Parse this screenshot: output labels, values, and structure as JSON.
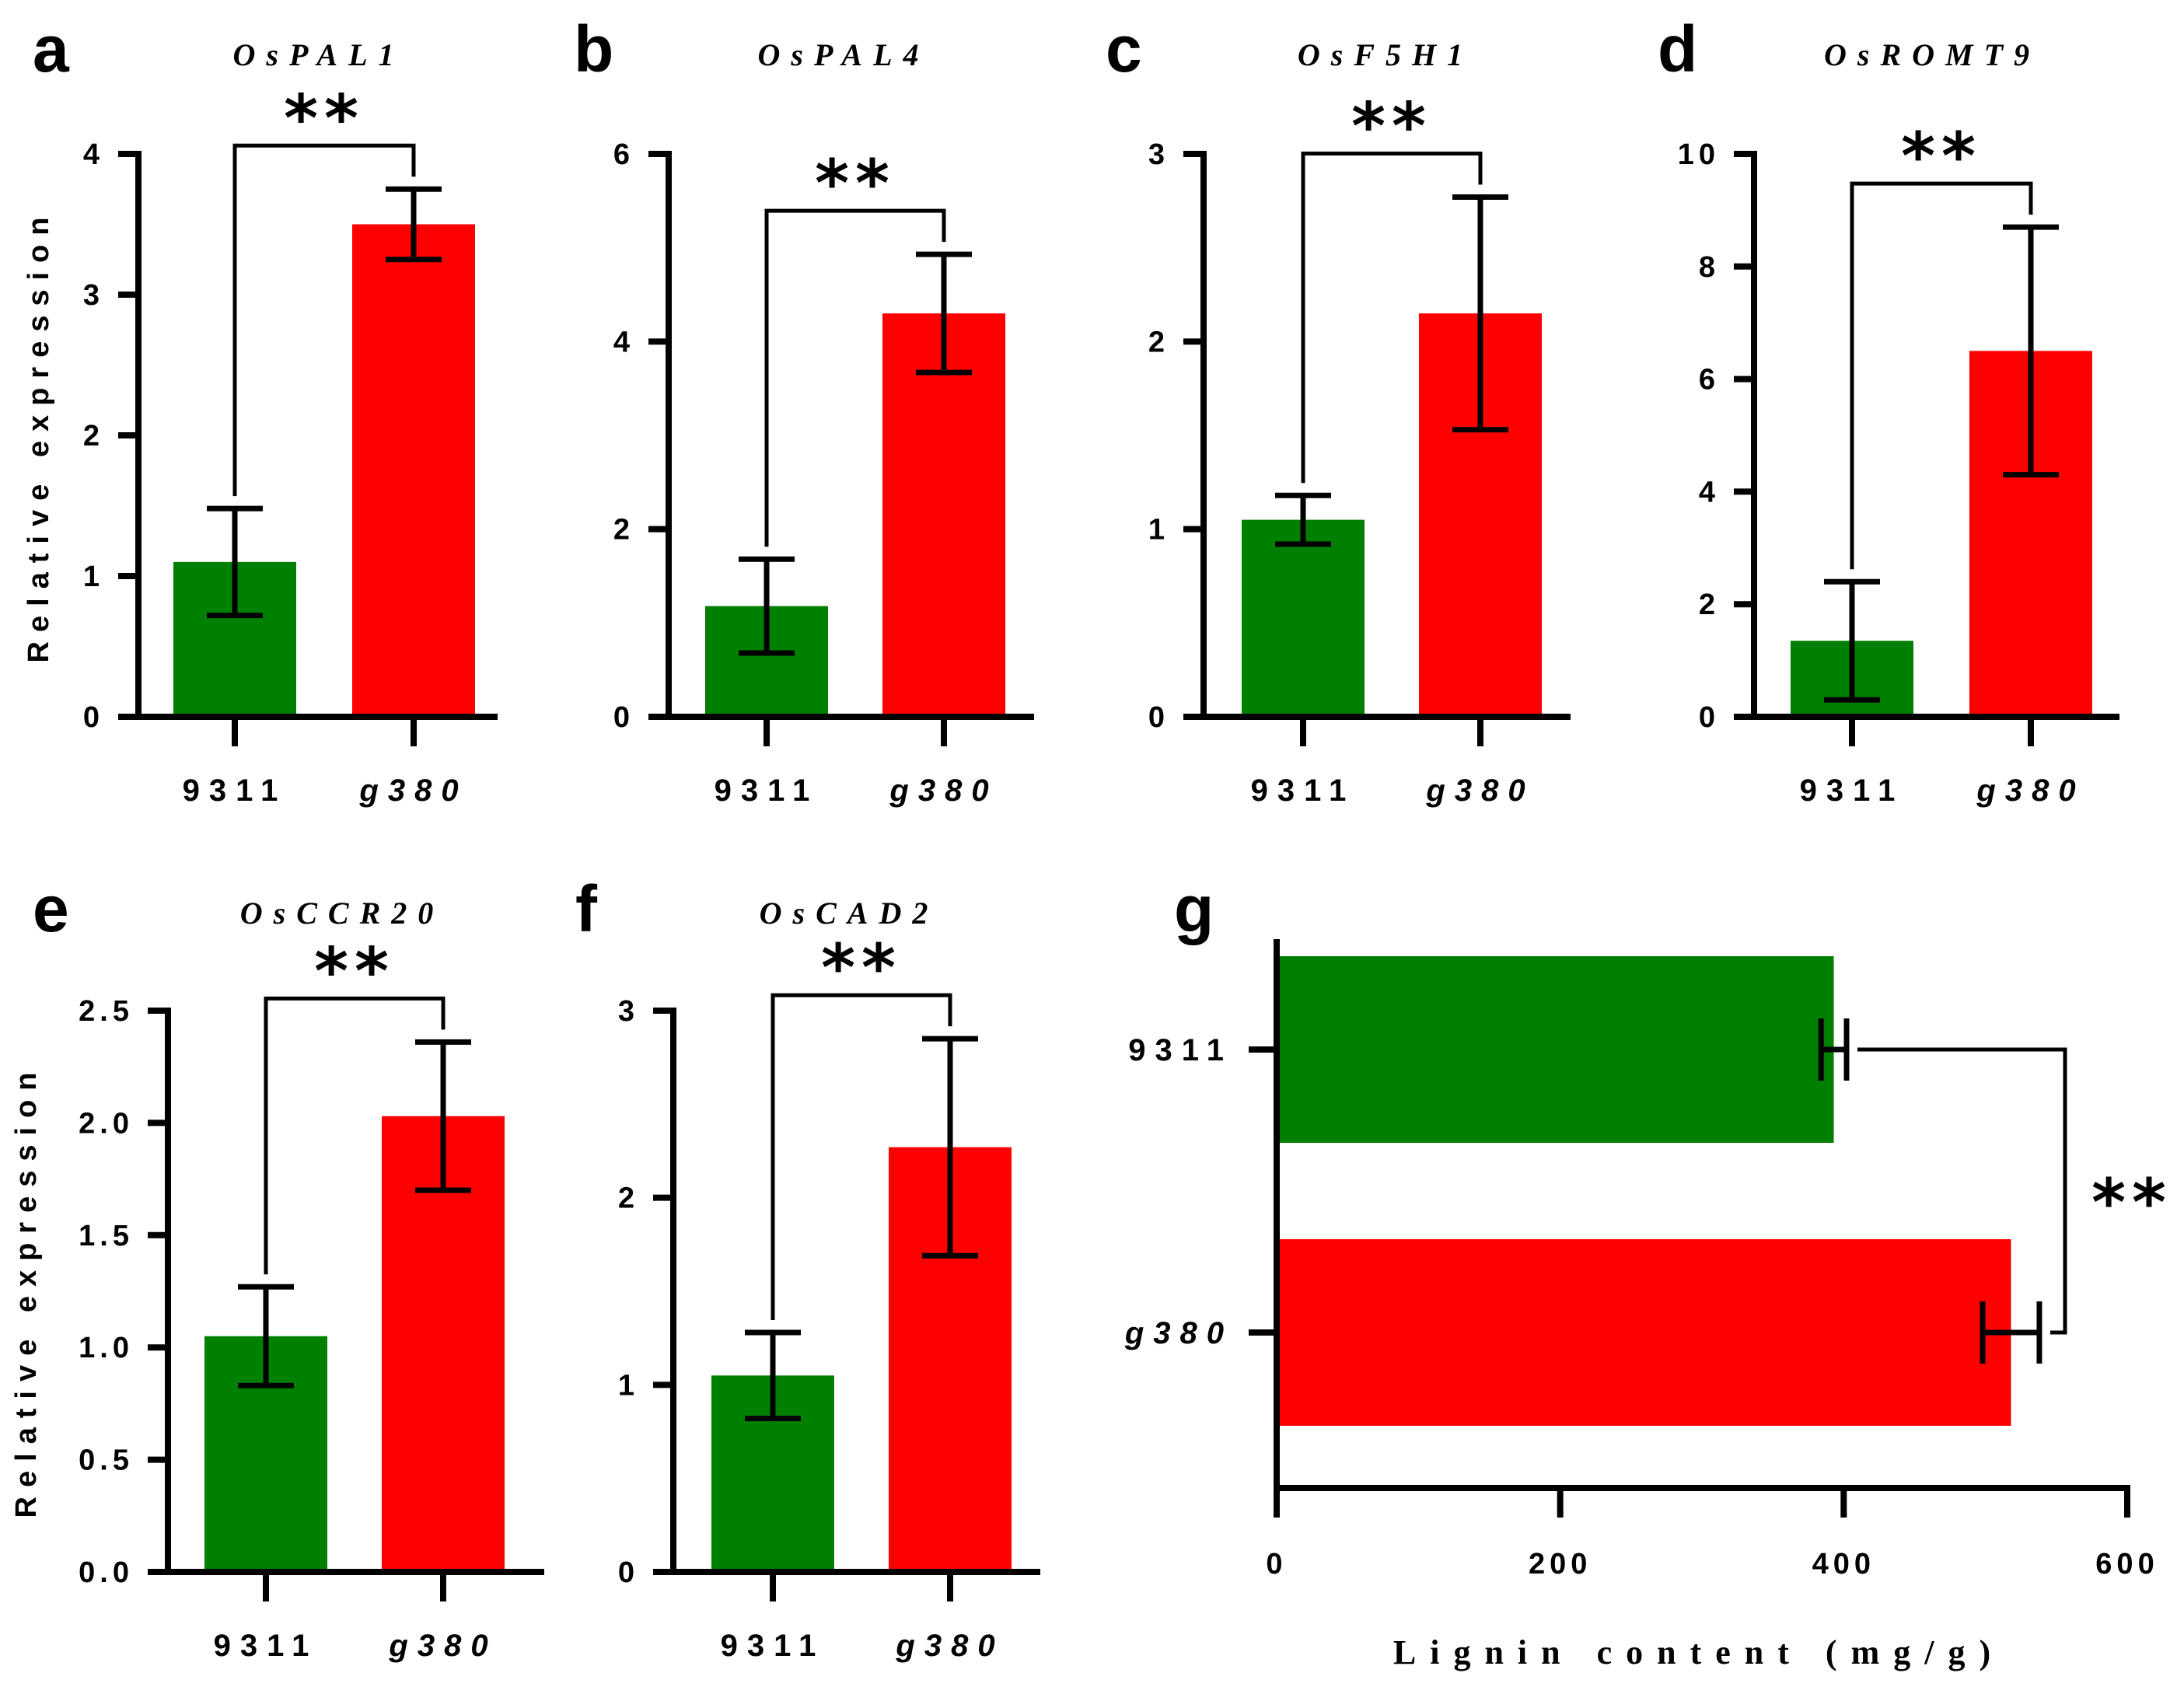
{
  "figure": {
    "colors": {
      "green": "#008000",
      "red": "#ff0000",
      "ink": "#000000"
    }
  },
  "chart_data": [
    {
      "panel": "a",
      "type": "bar",
      "orientation": "vertical",
      "title": "OsPAL1",
      "ylabel": "Relative expression",
      "xlabel": "",
      "categories": [
        "9311",
        "g380"
      ],
      "categories_italic": [
        false,
        true
      ],
      "values": [
        1.1,
        3.5
      ],
      "errors": [
        0.38,
        0.25
      ],
      "ylim": [
        0,
        4
      ],
      "yticks": [
        0,
        1,
        2,
        3,
        4
      ],
      "ytick_labels": [
        "0",
        "1",
        "2",
        "3",
        "4"
      ],
      "significance": "**"
    },
    {
      "panel": "b",
      "type": "bar",
      "orientation": "vertical",
      "title": "OsPAL4",
      "ylabel": "",
      "xlabel": "",
      "categories": [
        "9311",
        "g380"
      ],
      "categories_italic": [
        false,
        true
      ],
      "values": [
        1.18,
        4.3
      ],
      "errors": [
        0.5,
        0.63
      ],
      "ylim": [
        0,
        6
      ],
      "yticks": [
        0,
        2,
        4,
        6
      ],
      "ytick_labels": [
        "0",
        "2",
        "4",
        "6"
      ],
      "significance": "**"
    },
    {
      "panel": "c",
      "type": "bar",
      "orientation": "vertical",
      "title": "OsF5H1",
      "ylabel": "",
      "xlabel": "",
      "categories": [
        "9311",
        "g380"
      ],
      "categories_italic": [
        false,
        true
      ],
      "values": [
        1.05,
        2.15
      ],
      "errors": [
        0.13,
        0.62
      ],
      "ylim": [
        0,
        3
      ],
      "yticks": [
        0,
        1,
        2,
        3
      ],
      "ytick_labels": [
        "0",
        "1",
        "2",
        "3"
      ],
      "significance": "**"
    },
    {
      "panel": "d",
      "type": "bar",
      "orientation": "vertical",
      "title": "OsROMT9",
      "ylabel": "",
      "xlabel": "",
      "categories": [
        "9311",
        "g380"
      ],
      "categories_italic": [
        false,
        true
      ],
      "values": [
        1.35,
        6.5
      ],
      "errors": [
        1.05,
        2.2
      ],
      "ylim": [
        0,
        10
      ],
      "yticks": [
        0,
        2,
        4,
        6,
        8,
        10
      ],
      "ytick_labels": [
        "0",
        "2",
        "4",
        "6",
        "8",
        "10"
      ],
      "significance": "**"
    },
    {
      "panel": "e",
      "type": "bar",
      "orientation": "vertical",
      "title": "OsCCR20",
      "ylabel": "Relative expression",
      "xlabel": "",
      "categories": [
        "9311",
        "g380"
      ],
      "categories_italic": [
        false,
        true
      ],
      "values": [
        1.05,
        2.03
      ],
      "errors": [
        0.22,
        0.33
      ],
      "ylim": [
        0,
        2.5
      ],
      "yticks": [
        0,
        0.5,
        1.0,
        1.5,
        2.0,
        2.5
      ],
      "ytick_labels": [
        "0.0",
        "0.5",
        "1.0",
        "1.5",
        "2.0",
        "2.5"
      ],
      "significance": "**"
    },
    {
      "panel": "f",
      "type": "bar",
      "orientation": "vertical",
      "title": "OsCAD2",
      "ylabel": "",
      "xlabel": "",
      "categories": [
        "9311",
        "g380"
      ],
      "categories_italic": [
        false,
        true
      ],
      "values": [
        1.05,
        2.27
      ],
      "errors": [
        0.23,
        0.58
      ],
      "ylim": [
        0,
        3
      ],
      "yticks": [
        0,
        1,
        2,
        3
      ],
      "ytick_labels": [
        "0",
        "1",
        "2",
        "3"
      ],
      "significance": "**"
    },
    {
      "panel": "g",
      "type": "bar",
      "orientation": "horizontal",
      "title": "",
      "xlabel": "Lignin content (mg/g)",
      "ylabel": "",
      "categories": [
        "9311",
        "g380"
      ],
      "categories_italic": [
        false,
        true
      ],
      "values": [
        393,
        518
      ],
      "errors": [
        9,
        20
      ],
      "xlim": [
        0,
        600
      ],
      "xticks": [
        0,
        200,
        400,
        600
      ],
      "xtick_labels": [
        "0",
        "200",
        "400",
        "600"
      ],
      "significance": "**"
    }
  ]
}
